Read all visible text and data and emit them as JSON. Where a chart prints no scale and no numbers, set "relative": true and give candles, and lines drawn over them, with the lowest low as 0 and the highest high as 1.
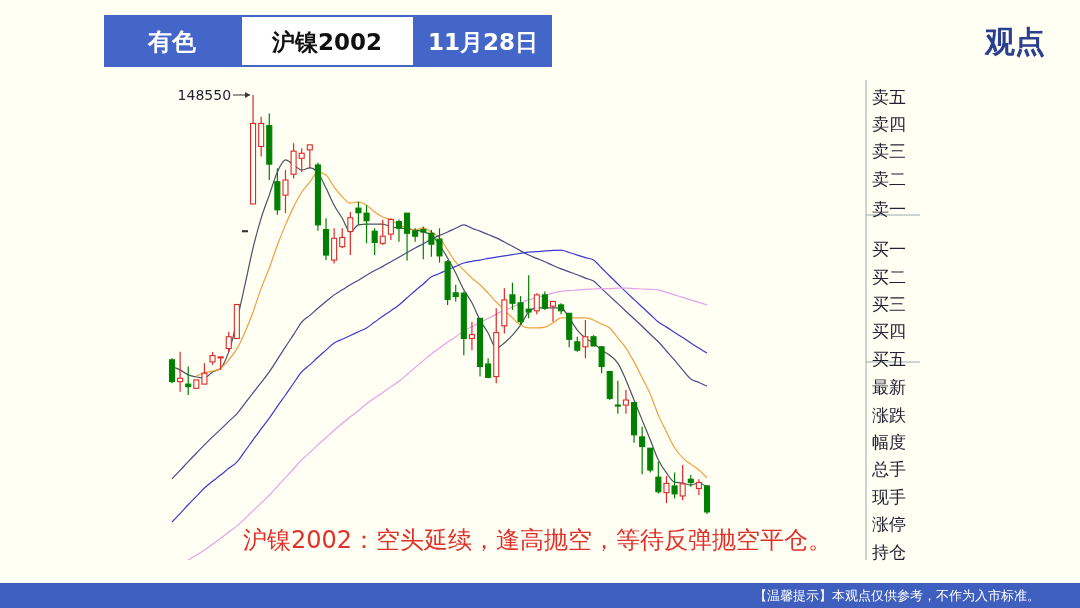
{
  "chart_data": {
    "type": "candlestick",
    "title": "沪镍2002",
    "subtitle": "观点",
    "relative": true,
    "categories": [
      null,
      null,
      null,
      null,
      null,
      null,
      null,
      null,
      null,
      null,
      null,
      null,
      null,
      null,
      null,
      null,
      null,
      null,
      null,
      null,
      null,
      null,
      null,
      null,
      null,
      null,
      null,
      null,
      null,
      null,
      null,
      null,
      null,
      null,
      null,
      null,
      null,
      null,
      null,
      null,
      null,
      null,
      null,
      null,
      null,
      null,
      null,
      null,
      null,
      null,
      null,
      null,
      null,
      null,
      null,
      null,
      null,
      null,
      null,
      null,
      null,
      null,
      null,
      null,
      null,
      null,
      null
    ],
    "ohlc": [
      [
        0.368,
        0.372,
        0.312,
        0.316
      ],
      [
        0.316,
        0.387,
        0.292,
        0.324
      ],
      [
        0.31,
        0.352,
        0.284,
        0.304
      ],
      [
        0.3,
        0.32,
        0.3,
        0.32
      ],
      [
        0.31,
        0.36,
        0.31,
        0.336
      ],
      [
        0.363,
        0.387,
        0.356,
        0.378
      ],
      [
        0.373,
        0.375,
        0.344,
        0.375
      ],
      [
        0.395,
        0.435,
        0.387,
        0.423
      ],
      [
        0.419,
        0.5,
        0.419,
        0.5
      ],
      [
        0.676,
        0.676,
        0.676,
        0.676
      ],
      [
        0.74,
        1,
        0.74,
        0.932
      ],
      [
        0.877,
        0.948,
        0.853,
        0.932
      ],
      [
        0.927,
        0.956,
        0.797,
        0.835
      ],
      [
        0.793,
        0.825,
        0.714,
        0.726
      ],
      [
        0.761,
        0.821,
        0.718,
        0.797
      ],
      [
        0.811,
        0.885,
        0.801,
        0.866
      ],
      [
        0.849,
        0.873,
        0.816,
        0.861
      ],
      [
        0.869,
        0.881,
        0.825,
        0.881
      ],
      [
        0.833,
        0.839,
        0.676,
        0.69
      ],
      [
        0.679,
        0.706,
        0.606,
        0.618
      ],
      [
        0.606,
        0.682,
        0.598,
        0.658
      ],
      [
        0.638,
        0.682,
        0.634,
        0.66
      ],
      [
        0.674,
        0.721,
        0.618,
        0.707
      ],
      [
        0.73,
        0.745,
        0.69,
        0.719
      ],
      [
        0.718,
        0.737,
        0.646,
        0.7
      ],
      [
        0.675,
        0.682,
        0.618,
        0.648
      ],
      [
        0.646,
        0.702,
        0.642,
        0.663
      ],
      [
        0.668,
        0.706,
        0.654,
        0.703
      ],
      [
        0.698,
        0.703,
        0.65,
        0.682
      ],
      [
        0.718,
        0.718,
        0.605,
        0.67
      ],
      [
        0.676,
        0.682,
        0.65,
        0.663
      ],
      [
        0.679,
        0.686,
        0.608,
        0.673
      ],
      [
        0.67,
        0.678,
        0.614,
        0.644
      ],
      [
        0.656,
        0.682,
        0.6,
        0.616
      ],
      [
        0.602,
        0.606,
        0.499,
        0.512
      ],
      [
        0.528,
        0.547,
        0.507,
        0.519
      ],
      [
        0.527,
        0.531,
        0.379,
        0.419
      ],
      [
        0.419,
        0.459,
        0.391,
        0.428
      ],
      [
        0.467,
        0.467,
        0.328,
        0.352
      ],
      [
        0.358,
        0.372,
        0.324,
        0.326
      ],
      [
        0.328,
        0.491,
        0.312,
        0.433
      ],
      [
        0.449,
        0.539,
        0.431,
        0.511
      ],
      [
        0.523,
        0.552,
        0.487,
        0.503
      ],
      [
        0.504,
        0.52,
        0.451,
        0.459
      ],
      [
        0.489,
        0.57,
        0.467,
        0.482
      ],
      [
        0.485,
        0.527,
        0.477,
        0.523
      ],
      [
        0.523,
        0.531,
        0.487,
        0.491
      ],
      [
        0.496,
        0.509,
        0.459,
        0.507
      ],
      [
        0.499,
        0.503,
        0.477,
        0.485
      ],
      [
        0.479,
        0.479,
        0.398,
        0.417
      ],
      [
        0.411,
        0.423,
        0.387,
        0.391
      ],
      [
        0.399,
        0.463,
        0.372,
        0.423
      ],
      [
        0.423,
        0.427,
        0.401,
        0.401
      ],
      [
        0.399,
        0.401,
        0.336,
        0.352
      ],
      [
        0.34,
        0.34,
        0.272,
        0.276
      ],
      [
        0.26,
        0.318,
        0.239,
        0.258
      ],
      [
        0.26,
        0.296,
        0.239,
        0.272
      ],
      [
        0.266,
        0.266,
        0.17,
        0.189
      ],
      [
        0.184,
        0.208,
        0.095,
        0.161
      ],
      [
        0.157,
        0.157,
        0.099,
        0.105
      ],
      [
        0.088,
        0.125,
        0.049,
        0.053
      ],
      [
        0.051,
        0.091,
        0.026,
        0.073
      ],
      [
        0.067,
        0.099,
        0.037,
        0.048
      ],
      [
        0.043,
        0.117,
        0.033,
        0.072
      ],
      [
        0.083,
        0.093,
        0.065,
        0.075
      ],
      [
        0.061,
        0.083,
        0.045,
        0.075
      ],
      [
        0.067,
        0.069,
        0,
        0.005
      ]
    ],
    "colors": [
      "#008000",
      "#e02828",
      "#008000",
      "#e02828",
      "#e02828",
      "#e02828",
      "#e02828",
      "#e02828",
      "#e02828",
      "#333333",
      "#e02828",
      "#e02828",
      "#008000",
      "#008000",
      "#e02828",
      "#e02828",
      "#e02828",
      "#e02828",
      "#008000",
      "#008000",
      "#e02828",
      "#e02828",
      "#e02828",
      "#008000",
      "#008000",
      "#008000",
      "#e02828",
      "#e02828",
      "#008000",
      "#008000",
      "#008000",
      "#008000",
      "#008000",
      "#008000",
      "#008000",
      "#008000",
      "#008000",
      "#e02828",
      "#008000",
      "#008000",
      "#e02828",
      "#e02828",
      "#008000",
      "#008000",
      "#008000",
      "#e02828",
      "#008000",
      "#e02828",
      "#008000",
      "#008000",
      "#008000",
      "#e02828",
      "#008000",
      "#008000",
      "#008000",
      "#008000",
      "#e02828",
      "#008000",
      "#008000",
      "#008000",
      "#008000",
      "#e02828",
      "#008000",
      "#e02828",
      "#008000",
      "#e02828",
      "#008000"
    ],
    "series": [
      {
        "type": "line",
        "color": "#4a5262",
        "values": [
          0.351,
          0.344,
          0.332,
          0.327,
          0.325,
          0.339,
          0.348,
          0.387,
          null,
          0.547,
          0.635,
          0.706,
          0.761,
          0.816,
          0.845,
          0.833,
          0.821,
          0.826,
          0.814,
          0.778,
          0.737,
          0.706,
          0.673,
          0.69,
          0.692,
          0.692,
          0.692,
          0.685,
          0.683,
          0.68,
          0.678,
          0.673,
          0.666,
          0.642,
          0.611,
          0.575,
          0.535,
          0.504,
          0.463,
          0.432,
          0.396,
          0.408,
          0.427,
          0.451,
          0.482,
          0.492,
          0.492,
          0.492,
          0.492,
          0.468,
          0.439,
          0.42,
          0.408,
          0.391,
          0.379,
          0.36,
          0.32,
          0.272,
          0.224,
          0.177,
          0.129,
          0.098,
          0.076,
          0.074,
          0.069,
          0.074,
          0.064
        ]
      },
      {
        "type": "line",
        "color": "#f0a040",
        "values": [
          null,
          null,
          null,
          0.329,
          0.337,
          0.341,
          0.348,
          0.368,
          0.394,
          0.434,
          0.482,
          0.539,
          0.587,
          0.642,
          0.69,
          0.733,
          0.768,
          0.792,
          0.816,
          0.809,
          0.78,
          0.757,
          0.742,
          0.745,
          0.737,
          0.721,
          0.709,
          0.702,
          0.69,
          0.683,
          0.678,
          0.683,
          0.673,
          0.659,
          0.63,
          0.601,
          0.582,
          0.563,
          0.547,
          0.527,
          0.506,
          0.487,
          0.468,
          0.451,
          0.444,
          0.444,
          0.446,
          0.456,
          0.468,
          0.468,
          0.468,
          0.468,
          0.463,
          0.453,
          0.444,
          0.42,
          0.396,
          0.363,
          0.325,
          0.286,
          0.236,
          0.196,
          0.158,
          0.134,
          0.119,
          0.105,
          0.086
        ]
      },
      {
        "type": "line",
        "color": "#4a4a8a",
        "values": [
          0.084,
          0.104,
          0.125,
          0.145,
          0.165,
          0.184,
          0.202,
          0.221,
          0.239,
          0.264,
          0.289,
          0.314,
          0.339,
          0.369,
          0.399,
          0.428,
          0.458,
          0.474,
          0.491,
          0.507,
          0.523,
          0.535,
          0.547,
          0.558,
          0.57,
          0.581,
          0.591,
          0.602,
          0.613,
          0.624,
          0.635,
          0.645,
          0.656,
          0.665,
          0.673,
          0.682,
          0.69,
          0.682,
          0.675,
          0.667,
          0.659,
          0.649,
          0.639,
          0.628,
          0.618,
          0.61,
          0.602,
          0.593,
          0.585,
          0.578,
          0.571,
          0.563,
          0.556,
          0.538,
          0.52,
          0.502,
          0.484,
          0.466,
          0.448,
          0.429,
          0.411,
          0.389,
          0.367,
          0.344,
          0.322,
          0.314,
          0.305
        ]
      },
      {
        "type": "line",
        "color": "#3a3ad0",
        "values": [
          -0.019,
          0.001,
          0.022,
          0.042,
          0.062,
          0.078,
          0.093,
          0.109,
          0.124,
          0.15,
          0.177,
          0.203,
          0.229,
          0.257,
          0.284,
          0.312,
          0.339,
          0.356,
          0.374,
          0.391,
          0.408,
          0.417,
          0.426,
          0.435,
          0.444,
          0.458,
          0.472,
          0.485,
          0.499,
          0.516,
          0.533,
          0.549,
          0.566,
          0.574,
          0.583,
          0.591,
          0.599,
          0.603,
          0.606,
          0.61,
          0.613,
          0.616,
          0.619,
          0.622,
          0.625,
          0.626,
          0.628,
          0.629,
          0.63,
          0.624,
          0.618,
          0.612,
          0.606,
          0.587,
          0.568,
          0.549,
          0.53,
          0.512,
          0.494,
          0.476,
          0.458,
          0.446,
          0.433,
          0.421,
          0.408,
          0.396,
          0.384
        ]
      },
      {
        "type": "line",
        "color": "#e8a0e8",
        "values": [
          null,
          null,
          -0.11,
          -0.098,
          -0.086,
          -0.072,
          -0.058,
          -0.043,
          -0.029,
          -0.011,
          0.008,
          0.026,
          0.045,
          0.066,
          0.087,
          0.108,
          0.129,
          0.147,
          0.165,
          0.182,
          0.2,
          0.216,
          0.232,
          0.247,
          0.263,
          0.277,
          0.29,
          0.304,
          0.317,
          0.333,
          0.35,
          0.366,
          0.382,
          0.396,
          0.41,
          0.423,
          0.437,
          0.447,
          0.457,
          0.467,
          0.477,
          0.486,
          0.494,
          0.503,
          0.511,
          0.516,
          0.522,
          0.527,
          0.532,
          0.533,
          0.535,
          0.536,
          0.537,
          0.538,
          0.538,
          0.539,
          0.539,
          0.538,
          0.537,
          0.536,
          0.535,
          0.529,
          0.523,
          0.517,
          0.511,
          0.505,
          0.499
        ]
      }
    ],
    "annotations": [
      "有色",
      "11月28日",
      "148550",
      "沪镍2002：空头延续，逢高抛空，等待反弹抛空平仓。",
      "【温馨提示】本观点仅供参考，不作为入市标准。",
      "卖五",
      "卖四",
      "卖三",
      "卖二",
      "卖一",
      "买一",
      "买二",
      "买三",
      "买四",
      "买五",
      "最新",
      "涨跌",
      "幅度",
      "总手",
      "现手",
      "涨停",
      "持仓"
    ]
  }
}
